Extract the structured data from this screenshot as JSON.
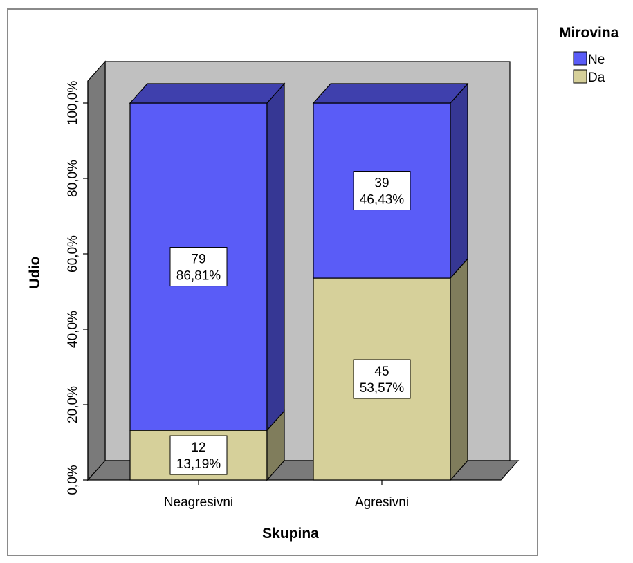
{
  "chart_data": {
    "type": "bar",
    "stacked": true,
    "three_d": true,
    "title": "",
    "xlabel": "Skupina",
    "ylabel": "Udio",
    "categories": [
      "Neagresivni",
      "Agresivni"
    ],
    "series": [
      {
        "name": "Da",
        "color": "#d6d09a",
        "values": [
          13.19,
          53.57
        ],
        "counts": [
          12,
          45
        ],
        "labels": [
          [
            "12",
            "13,19%"
          ],
          [
            "45",
            "53,57%"
          ]
        ]
      },
      {
        "name": "Ne",
        "color": "#5a5cf7",
        "values": [
          86.81,
          46.43
        ],
        "counts": [
          79,
          39
        ],
        "labels": [
          [
            "79",
            "86,81%"
          ],
          [
            "39",
            "46,43%"
          ]
        ]
      }
    ],
    "ylim": [
      0,
      100
    ],
    "yticks": [
      0,
      20,
      40,
      60,
      80,
      100
    ],
    "ytick_labels": [
      "0,0%",
      "20,0%",
      "40,0%",
      "60,0%",
      "80,0%",
      "100,0%"
    ],
    "legend": {
      "title": "Mirovina",
      "position": "top-right",
      "entries": [
        {
          "label": "Ne",
          "color": "#5a5cf7"
        },
        {
          "label": "Da",
          "color": "#d6d09a"
        }
      ]
    },
    "grid": false
  }
}
